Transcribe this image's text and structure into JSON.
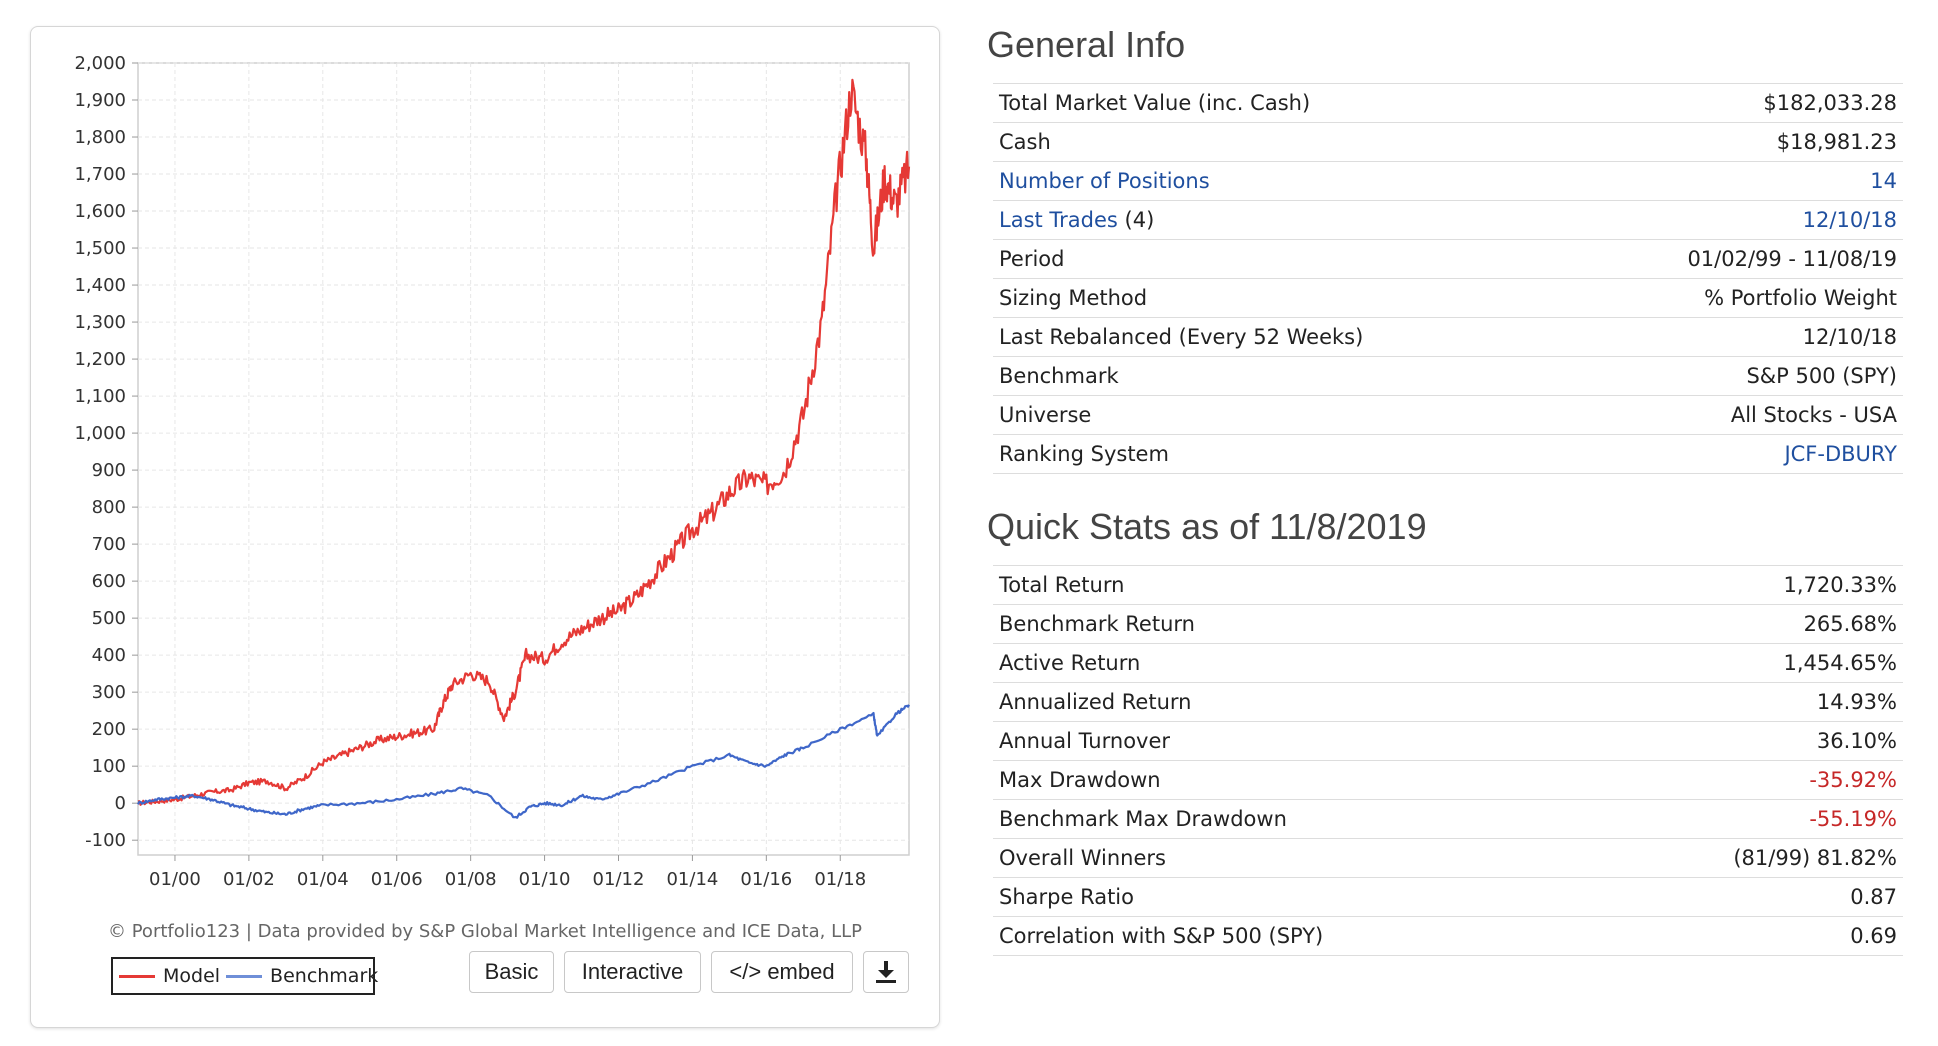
{
  "chart_data": {
    "type": "line",
    "x_ticks": [
      "01/00",
      "01/02",
      "01/04",
      "01/06",
      "01/08",
      "01/10",
      "01/12",
      "01/14",
      "01/16",
      "01/18"
    ],
    "y_ticks": [
      "2,000",
      "1,900",
      "1,800",
      "1,700",
      "1,600",
      "1,500",
      "1,400",
      "1,300",
      "1,200",
      "1,100",
      "1,000",
      "900",
      "800",
      "700",
      "600",
      "500",
      "400",
      "300",
      "200",
      "100",
      "0",
      "-100"
    ],
    "ylim": [
      -140,
      2000
    ],
    "xlim": [
      1999.0,
      2019.86
    ],
    "grid": true,
    "legend_position": "bottom-left",
    "series": [
      {
        "name": "Model",
        "color": "#e53935",
        "x": [
          1999.0,
          1999.5,
          2000.0,
          2000.5,
          2001.0,
          2001.5,
          2002.0,
          2002.5,
          2003.0,
          2003.5,
          2004.0,
          2004.5,
          2005.0,
          2005.5,
          2006.0,
          2006.5,
          2007.0,
          2007.25,
          2007.5,
          2008.0,
          2008.5,
          2008.9,
          2009.2,
          2009.5,
          2010.0,
          2010.5,
          2011.0,
          2011.5,
          2012.0,
          2012.5,
          2013.0,
          2013.5,
          2014.0,
          2014.5,
          2015.0,
          2015.5,
          2016.0,
          2016.5,
          2017.0,
          2017.5,
          2017.9,
          2018.3,
          2018.7,
          2018.9,
          2019.2,
          2019.5,
          2019.86
        ],
        "y": [
          0,
          5,
          10,
          20,
          30,
          35,
          55,
          60,
          40,
          70,
          110,
          130,
          150,
          170,
          180,
          190,
          200,
          270,
          320,
          350,
          330,
          230,
          300,
          400,
          390,
          440,
          470,
          500,
          520,
          560,
          620,
          680,
          740,
          780,
          840,
          880,
          860,
          900,
          1050,
          1300,
          1650,
          1930,
          1750,
          1500,
          1690,
          1620,
          1720
        ]
      },
      {
        "name": "Benchmark",
        "color": "#3f67c9",
        "x": [
          1999.0,
          1999.5,
          2000.0,
          2000.5,
          2001.0,
          2001.5,
          2002.0,
          2002.5,
          2003.0,
          2003.5,
          2004.0,
          2005.0,
          2006.0,
          2007.0,
          2007.75,
          2008.5,
          2009.2,
          2009.6,
          2010.0,
          2010.5,
          2011.0,
          2011.5,
          2012.0,
          2013.0,
          2014.0,
          2015.0,
          2015.5,
          2016.0,
          2016.5,
          2017.0,
          2018.0,
          2018.9,
          2019.0,
          2019.5,
          2019.86
        ],
        "y": [
          0,
          10,
          15,
          20,
          10,
          -5,
          -15,
          -25,
          -30,
          -15,
          -5,
          0,
          10,
          25,
          40,
          20,
          -40,
          -10,
          0,
          -5,
          20,
          10,
          25,
          60,
          100,
          130,
          110,
          100,
          130,
          150,
          200,
          240,
          180,
          240,
          266
        ]
      }
    ]
  },
  "chart_ui": {
    "credit": "© Portfolio123 | Data provided by S&P Global Market Intelligence and ICE Data, LLP",
    "legend": {
      "model": "Model",
      "benchmark": "Benchmark"
    },
    "buttons": {
      "basic": "Basic",
      "interactive": "Interactive",
      "embed": "</> embed",
      "download_icon": "download-icon"
    }
  },
  "general_info": {
    "title": "General Info",
    "rows": [
      {
        "label": "Total Market Value (inc. Cash)",
        "value": "$182,033.28"
      },
      {
        "label": "Cash",
        "value": "$18,981.23"
      },
      {
        "label": "Number of Positions",
        "value": "14"
      },
      {
        "label": "Last Trades",
        "label_suffix": " (4)",
        "value": "12/10/18"
      },
      {
        "label": "Period",
        "value": "01/02/99 - 11/08/19"
      },
      {
        "label": "Sizing Method",
        "value": "% Portfolio Weight"
      },
      {
        "label": "Last Rebalanced (Every 52 Weeks)",
        "value": "12/10/18"
      },
      {
        "label": "Benchmark",
        "value": "S&P 500 (SPY)"
      },
      {
        "label": "Universe",
        "value": "All Stocks - USA"
      },
      {
        "label": "Ranking System",
        "value": "JCF-DBURY"
      }
    ]
  },
  "quick_stats": {
    "title": "Quick Stats as of 11/8/2019",
    "rows": [
      {
        "label": "Total Return",
        "value": "1,720.33%"
      },
      {
        "label": "Benchmark Return",
        "value": "265.68%"
      },
      {
        "label": "Active Return",
        "value": "1,454.65%"
      },
      {
        "label": "Annualized Return",
        "value": "14.93%"
      },
      {
        "label": "Annual Turnover",
        "value": "36.10%"
      },
      {
        "label": "Max Drawdown",
        "value": "-35.92%"
      },
      {
        "label": "Benchmark Max Drawdown",
        "value": "-55.19%"
      },
      {
        "label": "Overall Winners",
        "value": "(81/99) 81.82%"
      },
      {
        "label": "Sharpe Ratio",
        "value": "0.87"
      },
      {
        "label": "Correlation with S&P 500 (SPY)",
        "value": "0.69"
      }
    ]
  },
  "colors": {
    "link": "#1f4f9f",
    "negative": "#c62828",
    "model": "#e53935",
    "benchmark": "#3f67c9"
  }
}
